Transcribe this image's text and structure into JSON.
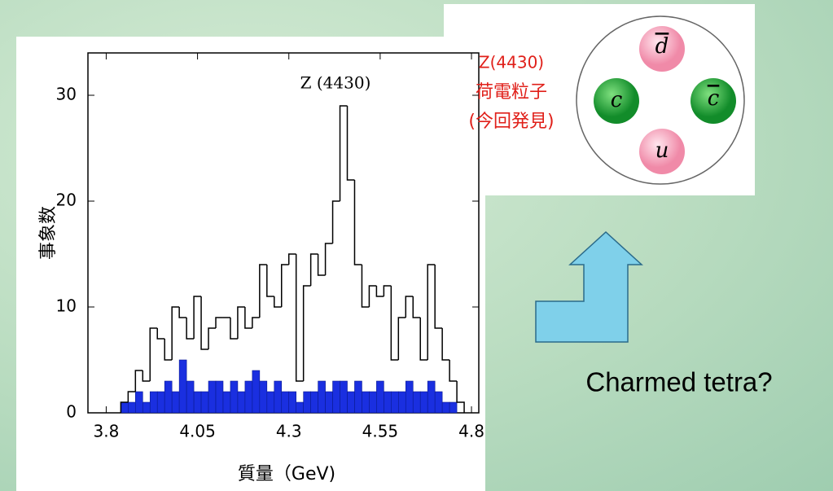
{
  "chart_data": {
    "type": "histogram",
    "annotation": "Z (4430)",
    "x_label": "質量（GeV)",
    "y_label": "事象数",
    "bins": [
      3.84,
      3.86,
      3.88,
      3.9,
      3.92,
      3.94,
      3.96,
      3.98,
      4.0,
      4.02,
      4.04,
      4.06,
      4.08,
      4.1,
      4.12,
      4.14,
      4.16,
      4.18,
      4.2,
      4.22,
      4.24,
      4.26,
      4.28,
      4.3,
      4.32,
      4.34,
      4.36,
      4.38,
      4.4,
      4.42,
      4.44,
      4.46,
      4.48,
      4.5,
      4.52,
      4.54,
      4.56,
      4.58,
      4.6,
      4.62,
      4.64,
      4.66,
      4.68,
      4.7,
      4.72,
      4.74,
      4.76,
      4.78
    ],
    "series": [
      {
        "color": "#000000",
        "values": [
          1,
          2,
          4,
          3,
          8,
          7,
          5,
          10,
          9,
          7,
          11,
          6,
          8,
          9,
          9,
          7,
          10,
          8,
          9,
          14,
          11,
          10,
          14,
          15,
          3,
          12,
          15,
          13,
          16,
          20,
          29,
          22,
          14,
          10,
          12,
          11,
          12,
          5,
          9,
          11,
          9,
          5,
          14,
          8,
          5,
          3,
          1
        ]
      },
      {
        "color": "#1a2fe0",
        "values": [
          1,
          1,
          2,
          1,
          2,
          2,
          3,
          2,
          5,
          3,
          2,
          2,
          3,
          3,
          2,
          3,
          2,
          3,
          4,
          3,
          2,
          3,
          2,
          2,
          1,
          2,
          2,
          3,
          2,
          3,
          3,
          2,
          3,
          2,
          2,
          3,
          2,
          2,
          2,
          3,
          2,
          2,
          3,
          2,
          1,
          1,
          0
        ]
      }
    ],
    "xlim": [
      3.75,
      4.82
    ],
    "ylim": [
      0,
      34
    ],
    "xticks": [
      3.8,
      4.05,
      4.3,
      4.55,
      4.8
    ],
    "yticks": [
      0,
      10,
      20,
      30
    ]
  },
  "diagram": {
    "label_lines": [
      "Z(4430)",
      "荷電粒子",
      "(今回発見)"
    ],
    "quarks": [
      "d",
      "c",
      "c",
      "u"
    ],
    "caption": "Charmed tetra?"
  }
}
